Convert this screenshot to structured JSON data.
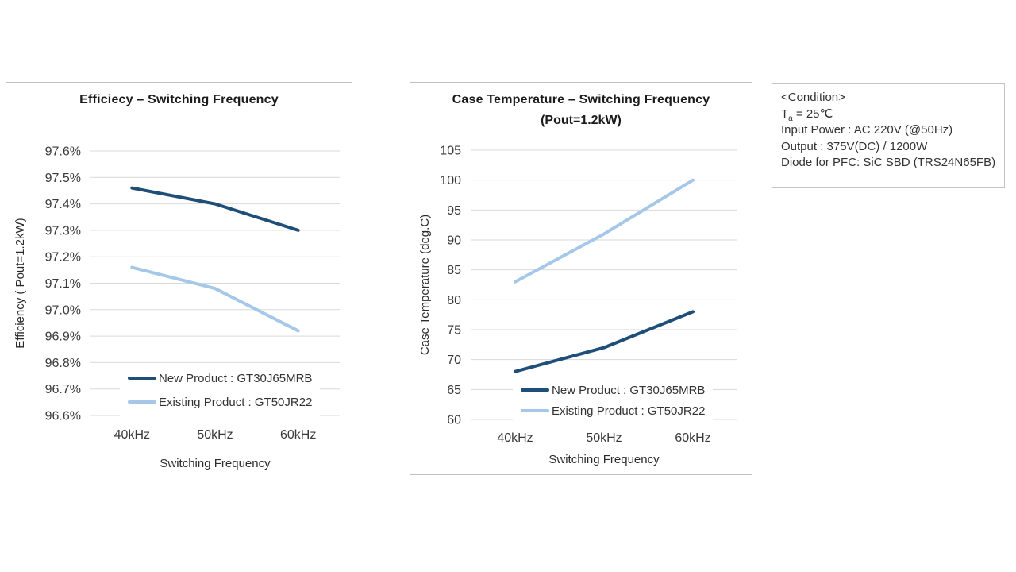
{
  "colors": {
    "new_product": "#1F4E79",
    "existing_product": "#A5C7E8",
    "gridline": "#D9D9D9",
    "panel_border": "#BFBFBF"
  },
  "condition_box": {
    "title": "<Condition>",
    "ta": {
      "prefix": "T",
      "sub": "a",
      "rest": " = 25℃"
    },
    "lines": [
      "Input Power : AC 220V (@50Hz)",
      "Output :  375V(DC) / 1200W",
      "Diode for PFC: SiC SBD (TRS24N65FB)"
    ]
  },
  "chart_data": [
    {
      "type": "line",
      "title": "Efficiecy – Switching Frequency",
      "subtitle": "",
      "xlabel": "Switching Frequency",
      "ylabel": "Efficiency ( Pout=1.2kW)",
      "categories": [
        "40kHz",
        "50kHz",
        "60kHz"
      ],
      "ylim": [
        96.6,
        97.6
      ],
      "y_step": 0.1,
      "y_ticks": [
        "97.6%",
        "97.5%",
        "97.4%",
        "97.3%",
        "97.2%",
        "97.1%",
        "97.0%",
        "96.9%",
        "96.8%",
        "96.7%",
        "96.6%"
      ],
      "grid": true,
      "legend_position": "inside-bottom",
      "series": [
        {
          "name": "New Product : GT30J65MRB",
          "color": "#1F4E79",
          "values": [
            97.46,
            97.4,
            97.3
          ]
        },
        {
          "name": "Existing Product : GT50JR22",
          "color": "#A5C7E8",
          "values": [
            97.16,
            97.08,
            96.92
          ]
        }
      ]
    },
    {
      "type": "line",
      "title": "Case Temperature – Switching Frequency",
      "subtitle": "(Pout=1.2kW)",
      "xlabel": "Switching Frequency",
      "ylabel": "Case Temperature (deg.C)",
      "categories": [
        "40kHz",
        "50kHz",
        "60kHz"
      ],
      "ylim": [
        60,
        105
      ],
      "y_step": 5,
      "y_ticks": [
        "105",
        "100",
        "95",
        "90",
        "85",
        "80",
        "75",
        "70",
        "65",
        "60"
      ],
      "grid": true,
      "legend_position": "inside-bottom",
      "series": [
        {
          "name": "New Product : GT30J65MRB",
          "color": "#1F4E79",
          "values": [
            68,
            72,
            78
          ]
        },
        {
          "name": "Existing Product : GT50JR22",
          "color": "#A5C7E8",
          "values": [
            83,
            91,
            100
          ]
        }
      ]
    }
  ]
}
